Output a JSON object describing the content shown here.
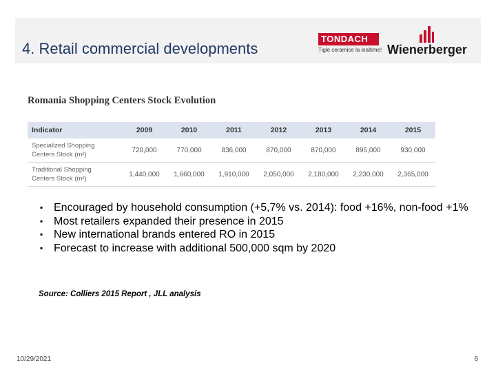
{
  "header": {
    "title": "4. Retail commercial developments",
    "logos": {
      "tondach_name": "TONDACH",
      "tondach_tagline": "Tigle ceramice la inaltime!",
      "wienerberger_name": "Wienerberger"
    }
  },
  "table": {
    "title": "Romania Shopping Centers Stock Evolution",
    "columns": [
      "Indicator",
      "2009",
      "2010",
      "2011",
      "2012",
      "2013",
      "2014",
      "2015"
    ],
    "rows": [
      {
        "label_line1": "Specialized Shopping",
        "label_line2": "Centers Stock (m²)",
        "values": [
          "720,000",
          "770,000",
          "836,000",
          "870,000",
          "870,000",
          "895,000",
          "930,000"
        ]
      },
      {
        "label_line1": "Traditional Shopping",
        "label_line2": "Centers Stock (m²)",
        "values": [
          "1,440,000",
          "1,660,000",
          "1,910,000",
          "2,050,000",
          "2,180,000",
          "2,230,000",
          "2,365,000"
        ]
      }
    ]
  },
  "bullets": [
    "Encouraged by household consumption (+5,7% vs. 2014): food +16%, non-food +1%",
    "Most retailers expanded their presence in 2015",
    "New international brands entered RO in 2015",
    "Forecast to increase with additional 500,000 sqm by 2020"
  ],
  "source": "Source: Colliers 2015 Report , JLL analysis",
  "footer": {
    "date": "10/29/2021",
    "page": "6"
  },
  "colors": {
    "title": "#1f3864",
    "tondach_red": "#c8102e",
    "table_header_bg": "#dde3ee"
  }
}
